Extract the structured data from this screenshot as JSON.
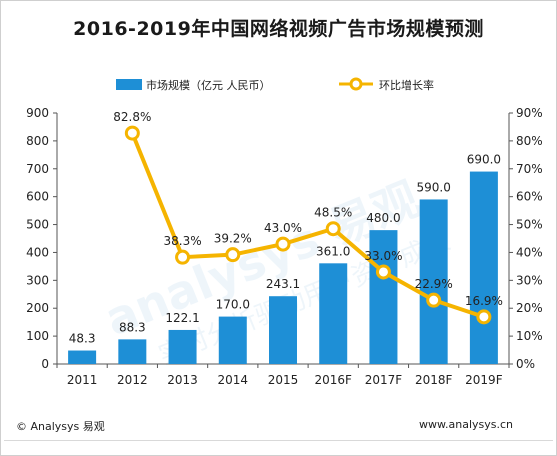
{
  "title": "2016-2019年中国网络视频广告市场规模预测",
  "footer": {
    "copyright": "© Analysys 易观",
    "website": "www.analysys.cn"
  },
  "legend": {
    "bar_label": "市场规模（亿元 人民币）",
    "line_label": "环比增长率",
    "position": "top-center"
  },
  "colors": {
    "bar": "#1e8fd6",
    "line": "#f5b400",
    "marker_fill": "#ffffff"
  },
  "chart_data": {
    "type": "bar",
    "title": "2016-2019年中国网络视频广告市场规模预测",
    "categories": [
      "2011",
      "2012",
      "2013",
      "2014",
      "2015",
      "2016F",
      "2017F",
      "2018F",
      "2019F"
    ],
    "series": [
      {
        "name": "市场规模（亿元 人民币）",
        "type": "bar",
        "axis": "left",
        "values": [
          48.3,
          88.3,
          122.1,
          170.0,
          243.1,
          361.0,
          480.0,
          590.0,
          690.0
        ],
        "labels": [
          "48.3",
          "88.3",
          "122.1",
          "170.0",
          "243.1",
          "361.0",
          "480.0",
          "590.0",
          "690.0"
        ]
      },
      {
        "name": "环比增长率",
        "type": "line",
        "axis": "right",
        "values": [
          null,
          82.8,
          38.3,
          39.2,
          43.0,
          48.5,
          33.0,
          22.9,
          16.9
        ],
        "labels": [
          "",
          "82.8%",
          "38.3%",
          "39.2%",
          "43.0%",
          "48.5%",
          "33.0%",
          "22.9%",
          "16.9%"
        ]
      }
    ],
    "y_left": {
      "min": 0,
      "max": 900,
      "ticks": [
        "0",
        "100",
        "200",
        "300",
        "400",
        "500",
        "600",
        "700",
        "800",
        "900"
      ]
    },
    "y_right": {
      "min": 0,
      "max": 90,
      "ticks": [
        "0%",
        "10%",
        "20%",
        "30%",
        "40%",
        "50%",
        "60%",
        "70%",
        "80%",
        "90%"
      ]
    },
    "grid": false
  }
}
